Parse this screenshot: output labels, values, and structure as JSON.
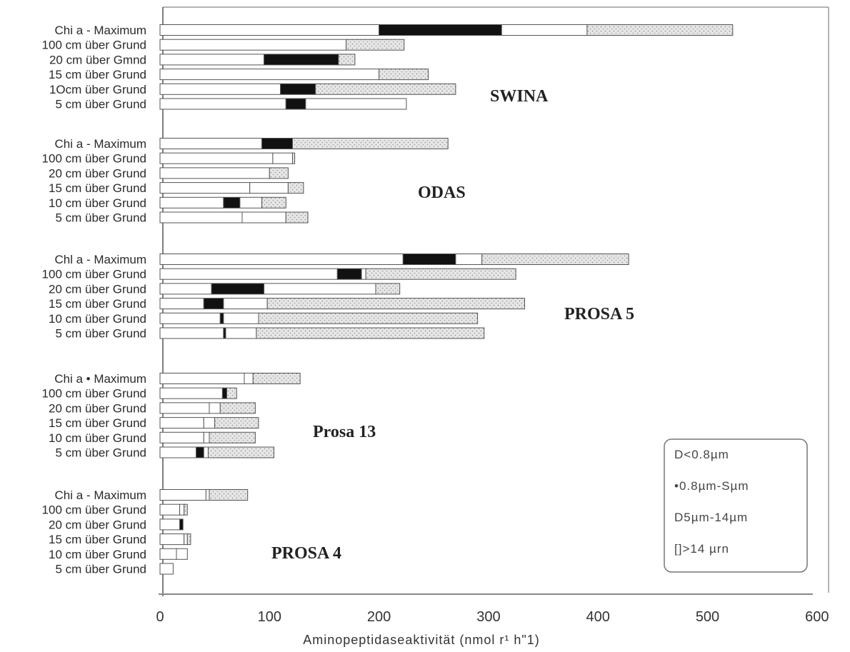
{
  "chart_data": {
    "type": "bar",
    "stacked": true,
    "orientation": "horizontal",
    "xlabel": "Aminopeptidaseaktivität (nmol r¹ h\"1)",
    "xlim": [
      0,
      600
    ],
    "xticks": [
      "0",
      "100",
      "200",
      "300",
      "400",
      "500",
      "600"
    ],
    "legend": {
      "position": "bottom-right",
      "entries": [
        "D<0.8µm",
        "•0.8µm-Sµm",
        "D5µm-14µm",
        "[]>14 µrn"
      ]
    },
    "series_colors": [
      "#ffffff",
      "#111111",
      "#ffffff",
      "#dedede"
    ],
    "groups": [
      {
        "name": "SWINA",
        "categories": [
          "Chi a - Maximum",
          "100 cm über Grund",
          "20 cm über Gmnd",
          "15 cm über Grund",
          "1Ocm über Grund",
          "5 cm über Grund"
        ],
        "series": [
          {
            "values": [
              200,
              170,
              95,
              200,
              110,
              115
            ]
          },
          {
            "values": [
              112,
              0,
              68,
              0,
              32,
              18
            ]
          },
          {
            "values": [
              78,
              0,
              0,
              0,
              0,
              92
            ]
          },
          {
            "values": [
              133,
              53,
              15,
              45,
              128,
              0
            ]
          }
        ]
      },
      {
        "name": "ODAS",
        "categories": [
          "Chi a - Maximum",
          "100 cm über Grund",
          "20 cm über Grund",
          "15 cm über Grund",
          "10 cm über Grund",
          "5 cm über Grund"
        ],
        "series": [
          {
            "values": [
              93,
              103,
              100,
              82,
              58,
              75
            ]
          },
          {
            "values": [
              28,
              0,
              0,
              0,
              15,
              0
            ]
          },
          {
            "values": [
              0,
              18,
              0,
              35,
              20,
              40
            ]
          },
          {
            "values": [
              142,
              2,
              17,
              14,
              22,
              20
            ]
          }
        ]
      },
      {
        "name": "PROSA 5",
        "categories": [
          "Chl a - Maximum",
          "100 cm über Grund",
          "20 cm über Grund",
          "15 cm über Grund",
          "10 cm über Grund",
          "5 cm über Grund"
        ],
        "series": [
          {
            "values": [
              222,
              162,
              47,
              40,
              55,
              58
            ]
          },
          {
            "values": [
              48,
              22,
              48,
              18,
              3,
              2
            ]
          },
          {
            "values": [
              24,
              4,
              102,
              40,
              32,
              28
            ]
          },
          {
            "values": [
              134,
              137,
              22,
              235,
              200,
              208
            ]
          }
        ]
      },
      {
        "name": "Prosa 13",
        "categories": [
          "Chi a • Maximum",
          "100 cm über Grund",
          "20 cm über Grund",
          "15 cm über Grund",
          "10 cm über Grund",
          "5 cm über Grund"
        ],
        "series": [
          {
            "values": [
              77,
              57,
              45,
              40,
              40,
              33
            ]
          },
          {
            "values": [
              0,
              4,
              0,
              0,
              0,
              7
            ]
          },
          {
            "values": [
              8,
              0,
              10,
              10,
              5,
              4
            ]
          },
          {
            "values": [
              43,
              9,
              32,
              40,
              42,
              60
            ]
          }
        ]
      },
      {
        "name": "PROSA 4",
        "categories": [
          "Chi a - Maximum",
          "100 cm über Grund",
          "20 cm über Grund",
          "15 cm über Grund",
          "10 cm über Grund",
          "5 cm über Grund"
        ],
        "series": [
          {
            "values": [
              42,
              18,
              18,
              22,
              15,
              12
            ]
          },
          {
            "values": [
              0,
              0,
              3,
              0,
              0,
              0
            ]
          },
          {
            "values": [
              3,
              4,
              0,
              3,
              10,
              0
            ]
          },
          {
            "values": [
              35,
              3,
              0,
              3,
              0,
              0
            ]
          }
        ]
      }
    ]
  }
}
